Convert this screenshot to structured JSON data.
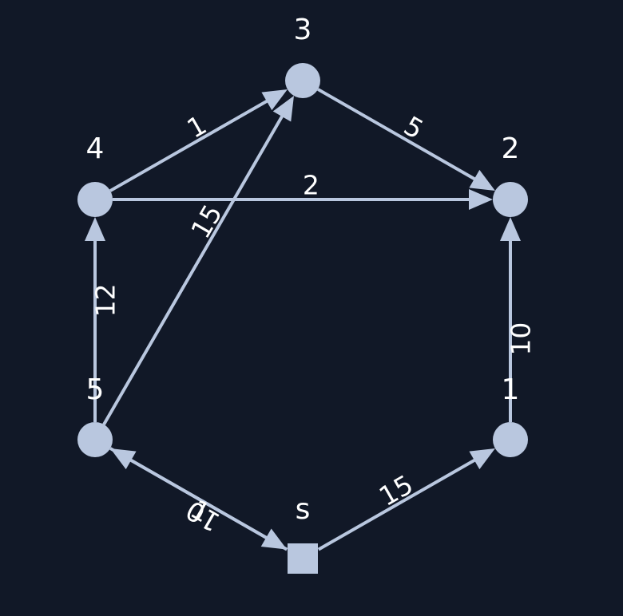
{
  "graph": {
    "nodes": [
      {
        "id": "s",
        "label": "s",
        "shape": "square"
      },
      {
        "id": "1",
        "label": "1",
        "shape": "circle"
      },
      {
        "id": "2",
        "label": "2",
        "shape": "circle"
      },
      {
        "id": "3",
        "label": "3",
        "shape": "circle"
      },
      {
        "id": "4",
        "label": "4",
        "shape": "circle"
      },
      {
        "id": "5",
        "label": "5",
        "shape": "circle"
      }
    ],
    "edges": [
      {
        "from": "s",
        "to": "1",
        "weight": "15"
      },
      {
        "from": "s",
        "to": "5",
        "weight": "1"
      },
      {
        "from": "5",
        "to": "s",
        "weight": "10"
      },
      {
        "from": "1",
        "to": "2",
        "weight": "10"
      },
      {
        "from": "5",
        "to": "4",
        "weight": "12"
      },
      {
        "from": "5",
        "to": "3",
        "weight": "15"
      },
      {
        "from": "4",
        "to": "3",
        "weight": "1"
      },
      {
        "from": "4",
        "to": "2",
        "weight": "2"
      },
      {
        "from": "3",
        "to": "2",
        "weight": "5"
      }
    ]
  },
  "colors": {
    "background": "#111827",
    "edge": "#b9c7df",
    "node": "#b9c7df",
    "label": "#ffffff"
  }
}
